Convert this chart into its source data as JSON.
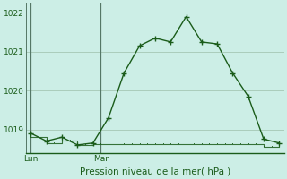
{
  "xlabel": "Pression niveau de la mer( hPa )",
  "bg_color": "#cceee6",
  "line_color": "#1a5c1a",
  "grid_color": "#aaccbb",
  "vline_color": "#557766",
  "ylim": [
    1018.4,
    1022.25
  ],
  "yticks": [
    1019,
    1020,
    1021,
    1022
  ],
  "xlim": [
    -0.3,
    16.3
  ],
  "x_lun": 0,
  "x_mar": 4.5,
  "series1_x": [
    0,
    0.5,
    1,
    1.5,
    2,
    2.5,
    3,
    3.5,
    4,
    4.5,
    5,
    5.5,
    6,
    6.5,
    7,
    7.5,
    8,
    8.5,
    9,
    9.5,
    10,
    10.5,
    11,
    11.5,
    12,
    12.5,
    13,
    13.5,
    14,
    14.5,
    15,
    15.5,
    16
  ],
  "series1_y": [
    1018.8,
    1018.8,
    1018.65,
    1018.65,
    1018.72,
    1018.72,
    1018.6,
    1018.6,
    1018.62,
    1018.62,
    1018.62,
    1018.62,
    1018.62,
    1018.62,
    1018.62,
    1018.62,
    1018.62,
    1018.62,
    1018.62,
    1018.62,
    1018.62,
    1018.62,
    1018.62,
    1018.62,
    1018.62,
    1018.62,
    1018.62,
    1018.62,
    1018.62,
    1018.62,
    1018.55,
    1018.55,
    1018.55
  ],
  "series2_x": [
    0,
    1,
    2,
    3,
    4,
    5,
    6,
    7,
    8,
    9,
    10,
    11,
    12,
    13,
    14,
    15,
    16
  ],
  "series2_y": [
    1018.9,
    1018.7,
    1018.8,
    1018.6,
    1018.65,
    1019.3,
    1020.45,
    1021.15,
    1021.35,
    1021.25,
    1021.9,
    1021.25,
    1021.2,
    1020.45,
    1019.85,
    1018.75,
    1018.65
  ],
  "vgrid_x": [
    0,
    1,
    2,
    3,
    4,
    5,
    6,
    7,
    8,
    9,
    10,
    11,
    12,
    13,
    14,
    15,
    16
  ]
}
